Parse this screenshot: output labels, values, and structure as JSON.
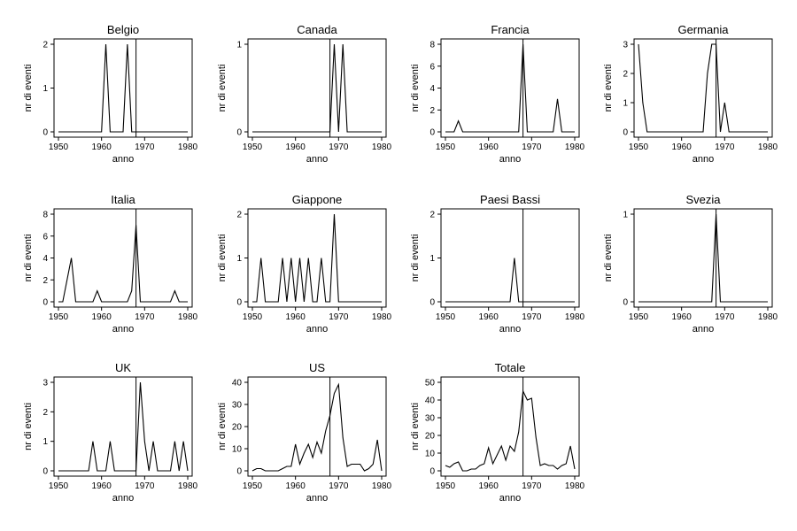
{
  "chart_data": [
    {
      "type": "line",
      "title": "Belgio",
      "xlabel": "anno",
      "ylabel": "nr di eventi",
      "xlim": [
        1950,
        1980
      ],
      "ylim": [
        0,
        2
      ],
      "xticks": [
        "1950",
        "1960",
        "1970",
        "1980"
      ],
      "yticks": [
        "0",
        "1",
        "2"
      ],
      "ref_line_x": 1968,
      "x": [
        1950,
        1951,
        1952,
        1953,
        1954,
        1955,
        1956,
        1957,
        1958,
        1959,
        1960,
        1961,
        1962,
        1963,
        1964,
        1965,
        1966,
        1967,
        1968,
        1969,
        1970,
        1971,
        1972,
        1973,
        1974,
        1975,
        1976,
        1977,
        1978,
        1979,
        1980
      ],
      "values": [
        0,
        0,
        0,
        0,
        0,
        0,
        0,
        0,
        0,
        0,
        0,
        2,
        0,
        0,
        0,
        0,
        2,
        0,
        0,
        0,
        0,
        0,
        0,
        0,
        0,
        0,
        0,
        0,
        0,
        0,
        0
      ]
    },
    {
      "type": "line",
      "title": "Canada",
      "xlabel": "anno",
      "ylabel": "nr di eventi",
      "xlim": [
        1950,
        1980
      ],
      "ylim": [
        0,
        1
      ],
      "xticks": [
        "1950",
        "1960",
        "1970",
        "1980"
      ],
      "yticks": [
        "0",
        "1"
      ],
      "ref_line_x": 1968,
      "x": [
        1950,
        1951,
        1952,
        1953,
        1954,
        1955,
        1956,
        1957,
        1958,
        1959,
        1960,
        1961,
        1962,
        1963,
        1964,
        1965,
        1966,
        1967,
        1968,
        1969,
        1970,
        1971,
        1972,
        1973,
        1974,
        1975,
        1976,
        1977,
        1978,
        1979,
        1980
      ],
      "values": [
        0,
        0,
        0,
        0,
        0,
        0,
        0,
        0,
        0,
        0,
        0,
        0,
        0,
        0,
        0,
        0,
        0,
        0,
        0,
        1,
        0,
        1,
        0,
        0,
        0,
        0,
        0,
        0,
        0,
        0,
        0
      ]
    },
    {
      "type": "line",
      "title": "Francia",
      "xlabel": "anno",
      "ylabel": "nr di eventi",
      "xlim": [
        1950,
        1980
      ],
      "ylim": [
        0,
        8
      ],
      "xticks": [
        "1950",
        "1960",
        "1970",
        "1980"
      ],
      "yticks": [
        "0",
        "2",
        "4",
        "6",
        "8"
      ],
      "ref_line_x": 1968,
      "x": [
        1950,
        1951,
        1952,
        1953,
        1954,
        1955,
        1956,
        1957,
        1958,
        1959,
        1960,
        1961,
        1962,
        1963,
        1964,
        1965,
        1966,
        1967,
        1968,
        1969,
        1970,
        1971,
        1972,
        1973,
        1974,
        1975,
        1976,
        1977,
        1978,
        1979,
        1980
      ],
      "values": [
        0,
        0,
        0,
        1,
        0,
        0,
        0,
        0,
        0,
        0,
        0,
        0,
        0,
        0,
        0,
        0,
        0,
        0,
        8,
        0,
        0,
        0,
        0,
        0,
        0,
        0,
        3,
        0,
        0,
        0,
        0
      ]
    },
    {
      "type": "line",
      "title": "Germania",
      "xlabel": "anno",
      "ylabel": "nr di eventi",
      "xlim": [
        1950,
        1980
      ],
      "ylim": [
        0,
        3
      ],
      "xticks": [
        "1950",
        "1960",
        "1970",
        "1980"
      ],
      "yticks": [
        "0",
        "1",
        "2",
        "3"
      ],
      "ref_line_x": 1968,
      "x": [
        1950,
        1951,
        1952,
        1953,
        1954,
        1955,
        1956,
        1957,
        1958,
        1959,
        1960,
        1961,
        1962,
        1963,
        1964,
        1965,
        1966,
        1967,
        1968,
        1969,
        1970,
        1971,
        1972,
        1973,
        1974,
        1975,
        1976,
        1977,
        1978,
        1979,
        1980
      ],
      "values": [
        3,
        1,
        0,
        0,
        0,
        0,
        0,
        0,
        0,
        0,
        0,
        0,
        0,
        0,
        0,
        0,
        2,
        3,
        3,
        0,
        1,
        0,
        0,
        0,
        0,
        0,
        0,
        0,
        0,
        0,
        0
      ]
    },
    {
      "type": "line",
      "title": "Italia",
      "xlabel": "anno",
      "ylabel": "nr di eventi",
      "xlim": [
        1950,
        1980
      ],
      "ylim": [
        0,
        8
      ],
      "xticks": [
        "1950",
        "1960",
        "1970",
        "1980"
      ],
      "yticks": [
        "0",
        "2",
        "4",
        "6",
        "8"
      ],
      "ref_line_x": 1968,
      "x": [
        1950,
        1951,
        1952,
        1953,
        1954,
        1955,
        1956,
        1957,
        1958,
        1959,
        1960,
        1961,
        1962,
        1963,
        1964,
        1965,
        1966,
        1967,
        1968,
        1969,
        1970,
        1971,
        1972,
        1973,
        1974,
        1975,
        1976,
        1977,
        1978,
        1979,
        1980
      ],
      "values": [
        0,
        0,
        2,
        4,
        0,
        0,
        0,
        0,
        0,
        1,
        0,
        0,
        0,
        0,
        0,
        0,
        0,
        1,
        7,
        0,
        0,
        0,
        0,
        0,
        0,
        0,
        0,
        1,
        0,
        0,
        0
      ]
    },
    {
      "type": "line",
      "title": "Giappone",
      "xlabel": "anno",
      "ylabel": "nr di eventi",
      "xlim": [
        1950,
        1980
      ],
      "ylim": [
        0,
        2
      ],
      "xticks": [
        "1950",
        "1960",
        "1970",
        "1980"
      ],
      "yticks": [
        "0",
        "1",
        "2"
      ],
      "ref_line_x": null,
      "x": [
        1950,
        1951,
        1952,
        1953,
        1954,
        1955,
        1956,
        1957,
        1958,
        1959,
        1960,
        1961,
        1962,
        1963,
        1964,
        1965,
        1966,
        1967,
        1968,
        1969,
        1970,
        1971,
        1972,
        1973,
        1974,
        1975,
        1976,
        1977,
        1978,
        1979,
        1980
      ],
      "values": [
        0,
        0,
        1,
        0,
        0,
        0,
        0,
        1,
        0,
        1,
        0,
        1,
        0,
        1,
        0,
        0,
        1,
        0,
        0,
        2,
        0,
        0,
        0,
        0,
        0,
        0,
        0,
        0,
        0,
        0,
        0
      ]
    },
    {
      "type": "line",
      "title": "Paesi Bassi",
      "xlabel": "anno",
      "ylabel": "nr di eventi",
      "xlim": [
        1950,
        1980
      ],
      "ylim": [
        0,
        2
      ],
      "xticks": [
        "1950",
        "1960",
        "1970",
        "1980"
      ],
      "yticks": [
        "0",
        "1",
        "2"
      ],
      "ref_line_x": 1968,
      "x": [
        1950,
        1951,
        1952,
        1953,
        1954,
        1955,
        1956,
        1957,
        1958,
        1959,
        1960,
        1961,
        1962,
        1963,
        1964,
        1965,
        1966,
        1967,
        1968,
        1969,
        1970,
        1971,
        1972,
        1973,
        1974,
        1975,
        1976,
        1977,
        1978,
        1979,
        1980
      ],
      "values": [
        0,
        0,
        0,
        0,
        0,
        0,
        0,
        0,
        0,
        0,
        0,
        0,
        0,
        0,
        0,
        0,
        1,
        0,
        0,
        0,
        0,
        0,
        0,
        0,
        0,
        0,
        0,
        0,
        0,
        0,
        0
      ]
    },
    {
      "type": "line",
      "title": "Svezia",
      "xlabel": "anno",
      "ylabel": "nr di eventi",
      "xlim": [
        1950,
        1980
      ],
      "ylim": [
        0,
        1
      ],
      "xticks": [
        "1950",
        "1960",
        "1970",
        "1980"
      ],
      "yticks": [
        "0",
        "1"
      ],
      "ref_line_x": 1968,
      "x": [
        1950,
        1951,
        1952,
        1953,
        1954,
        1955,
        1956,
        1957,
        1958,
        1959,
        1960,
        1961,
        1962,
        1963,
        1964,
        1965,
        1966,
        1967,
        1968,
        1969,
        1970,
        1971,
        1972,
        1973,
        1974,
        1975,
        1976,
        1977,
        1978,
        1979,
        1980
      ],
      "values": [
        0,
        0,
        0,
        0,
        0,
        0,
        0,
        0,
        0,
        0,
        0,
        0,
        0,
        0,
        0,
        0,
        0,
        0,
        1,
        0,
        0,
        0,
        0,
        0,
        0,
        0,
        0,
        0,
        0,
        0,
        0
      ]
    },
    {
      "type": "line",
      "title": "UK",
      "xlabel": "anno",
      "ylabel": "nr di eventi",
      "xlim": [
        1950,
        1980
      ],
      "ylim": [
        0,
        3
      ],
      "xticks": [
        "1950",
        "1960",
        "1970",
        "1980"
      ],
      "yticks": [
        "0",
        "1",
        "2",
        "3"
      ],
      "ref_line_x": 1968,
      "x": [
        1950,
        1951,
        1952,
        1953,
        1954,
        1955,
        1956,
        1957,
        1958,
        1959,
        1960,
        1961,
        1962,
        1963,
        1964,
        1965,
        1966,
        1967,
        1968,
        1969,
        1970,
        1971,
        1972,
        1973,
        1974,
        1975,
        1976,
        1977,
        1978,
        1979,
        1980
      ],
      "values": [
        0,
        0,
        0,
        0,
        0,
        0,
        0,
        0,
        1,
        0,
        0,
        0,
        1,
        0,
        0,
        0,
        0,
        0,
        0,
        3,
        1,
        0,
        1,
        0,
        0,
        0,
        0,
        1,
        0,
        1,
        0
      ]
    },
    {
      "type": "line",
      "title": "US",
      "xlabel": "anno",
      "ylabel": "nr di eventi",
      "xlim": [
        1950,
        1980
      ],
      "ylim": [
        0,
        40
      ],
      "xticks": [
        "1950",
        "1960",
        "1970",
        "1980"
      ],
      "yticks": [
        "0",
        "10",
        "20",
        "30",
        "40"
      ],
      "ref_line_x": 1968,
      "x": [
        1950,
        1951,
        1952,
        1953,
        1954,
        1955,
        1956,
        1957,
        1958,
        1959,
        1960,
        1961,
        1962,
        1963,
        1964,
        1965,
        1966,
        1967,
        1968,
        1969,
        1970,
        1971,
        1972,
        1973,
        1974,
        1975,
        1976,
        1977,
        1978,
        1979,
        1980
      ],
      "values": [
        0,
        1,
        1,
        0,
        0,
        0,
        0,
        1,
        2,
        2,
        12,
        3,
        8,
        12,
        6,
        13,
        8,
        18,
        25,
        35,
        39,
        15,
        2,
        3,
        3,
        3,
        0,
        1,
        3,
        14,
        0
      ]
    },
    {
      "type": "line",
      "title": "Totale",
      "xlabel": "anno",
      "ylabel": "nr di eventi",
      "xlim": [
        1950,
        1980
      ],
      "ylim": [
        0,
        50
      ],
      "xticks": [
        "1950",
        "1960",
        "1970",
        "1980"
      ],
      "yticks": [
        "0",
        "10",
        "20",
        "30",
        "40",
        "50"
      ],
      "ref_line_x": 1968,
      "x": [
        1950,
        1951,
        1952,
        1953,
        1954,
        1955,
        1956,
        1957,
        1958,
        1959,
        1960,
        1961,
        1962,
        1963,
        1964,
        1965,
        1966,
        1967,
        1968,
        1969,
        1970,
        1971,
        1972,
        1973,
        1974,
        1975,
        1976,
        1977,
        1978,
        1979,
        1980
      ],
      "values": [
        3,
        2,
        4,
        5,
        0,
        0,
        1,
        1,
        3,
        4,
        13,
        4,
        9,
        14,
        6,
        14,
        11,
        22,
        45,
        40,
        41,
        19,
        3,
        4,
        3,
        3,
        1,
        3,
        4,
        14,
        1
      ]
    }
  ]
}
